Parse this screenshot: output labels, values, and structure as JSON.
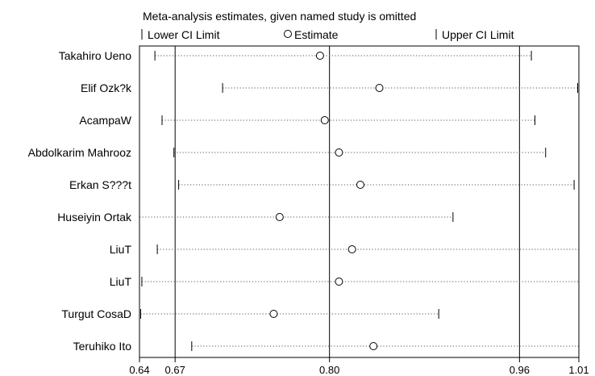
{
  "chart_data": {
    "type": "forest",
    "title": "Meta-analysis estimates, given named study is omitted",
    "legend": {
      "lower": "Lower CI Limit",
      "estimate": "Estimate",
      "upper": "Upper CI Limit"
    },
    "xlim": [
      0.64,
      1.01
    ],
    "ticks": [
      {
        "value": 0.64,
        "label": "0.64"
      },
      {
        "value": 0.67,
        "label": "0.67"
      },
      {
        "value": 0.8,
        "label": "0.80"
      },
      {
        "value": 0.96,
        "label": "0.96"
      },
      {
        "value": 1.01,
        "label": "1.01"
      }
    ],
    "reference_lines": [
      0.67,
      0.8,
      0.96
    ],
    "studies": [
      {
        "name": "Takahiro Ueno",
        "lower": 0.653,
        "estimate": 0.792,
        "upper": 0.97
      },
      {
        "name": "Elif Ozk?k",
        "lower": 0.71,
        "estimate": 0.842,
        "upper": 1.009
      },
      {
        "name": "AcampaW",
        "lower": 0.659,
        "estimate": 0.796,
        "upper": 0.973
      },
      {
        "name": "Abdolkarim Mahrooz",
        "lower": 0.669,
        "estimate": 0.808,
        "upper": 0.982
      },
      {
        "name": "Erkan S???t",
        "lower": 0.673,
        "estimate": 0.826,
        "upper": 1.006
      },
      {
        "name": "Huseiyin Ortak",
        "lower": 0.64,
        "estimate": 0.758,
        "upper": 0.904
      },
      {
        "name": "LiuT",
        "lower": 0.655,
        "estimate": 0.819,
        "upper": 1.017
      },
      {
        "name": "LiuT",
        "lower": 0.642,
        "estimate": 0.808,
        "upper": 1.027
      },
      {
        "name": "Turgut CosaD",
        "lower": 0.641,
        "estimate": 0.753,
        "upper": 0.892
      },
      {
        "name": "Teruhiko Ito",
        "lower": 0.684,
        "estimate": 0.837,
        "upper": 1.017
      }
    ]
  }
}
